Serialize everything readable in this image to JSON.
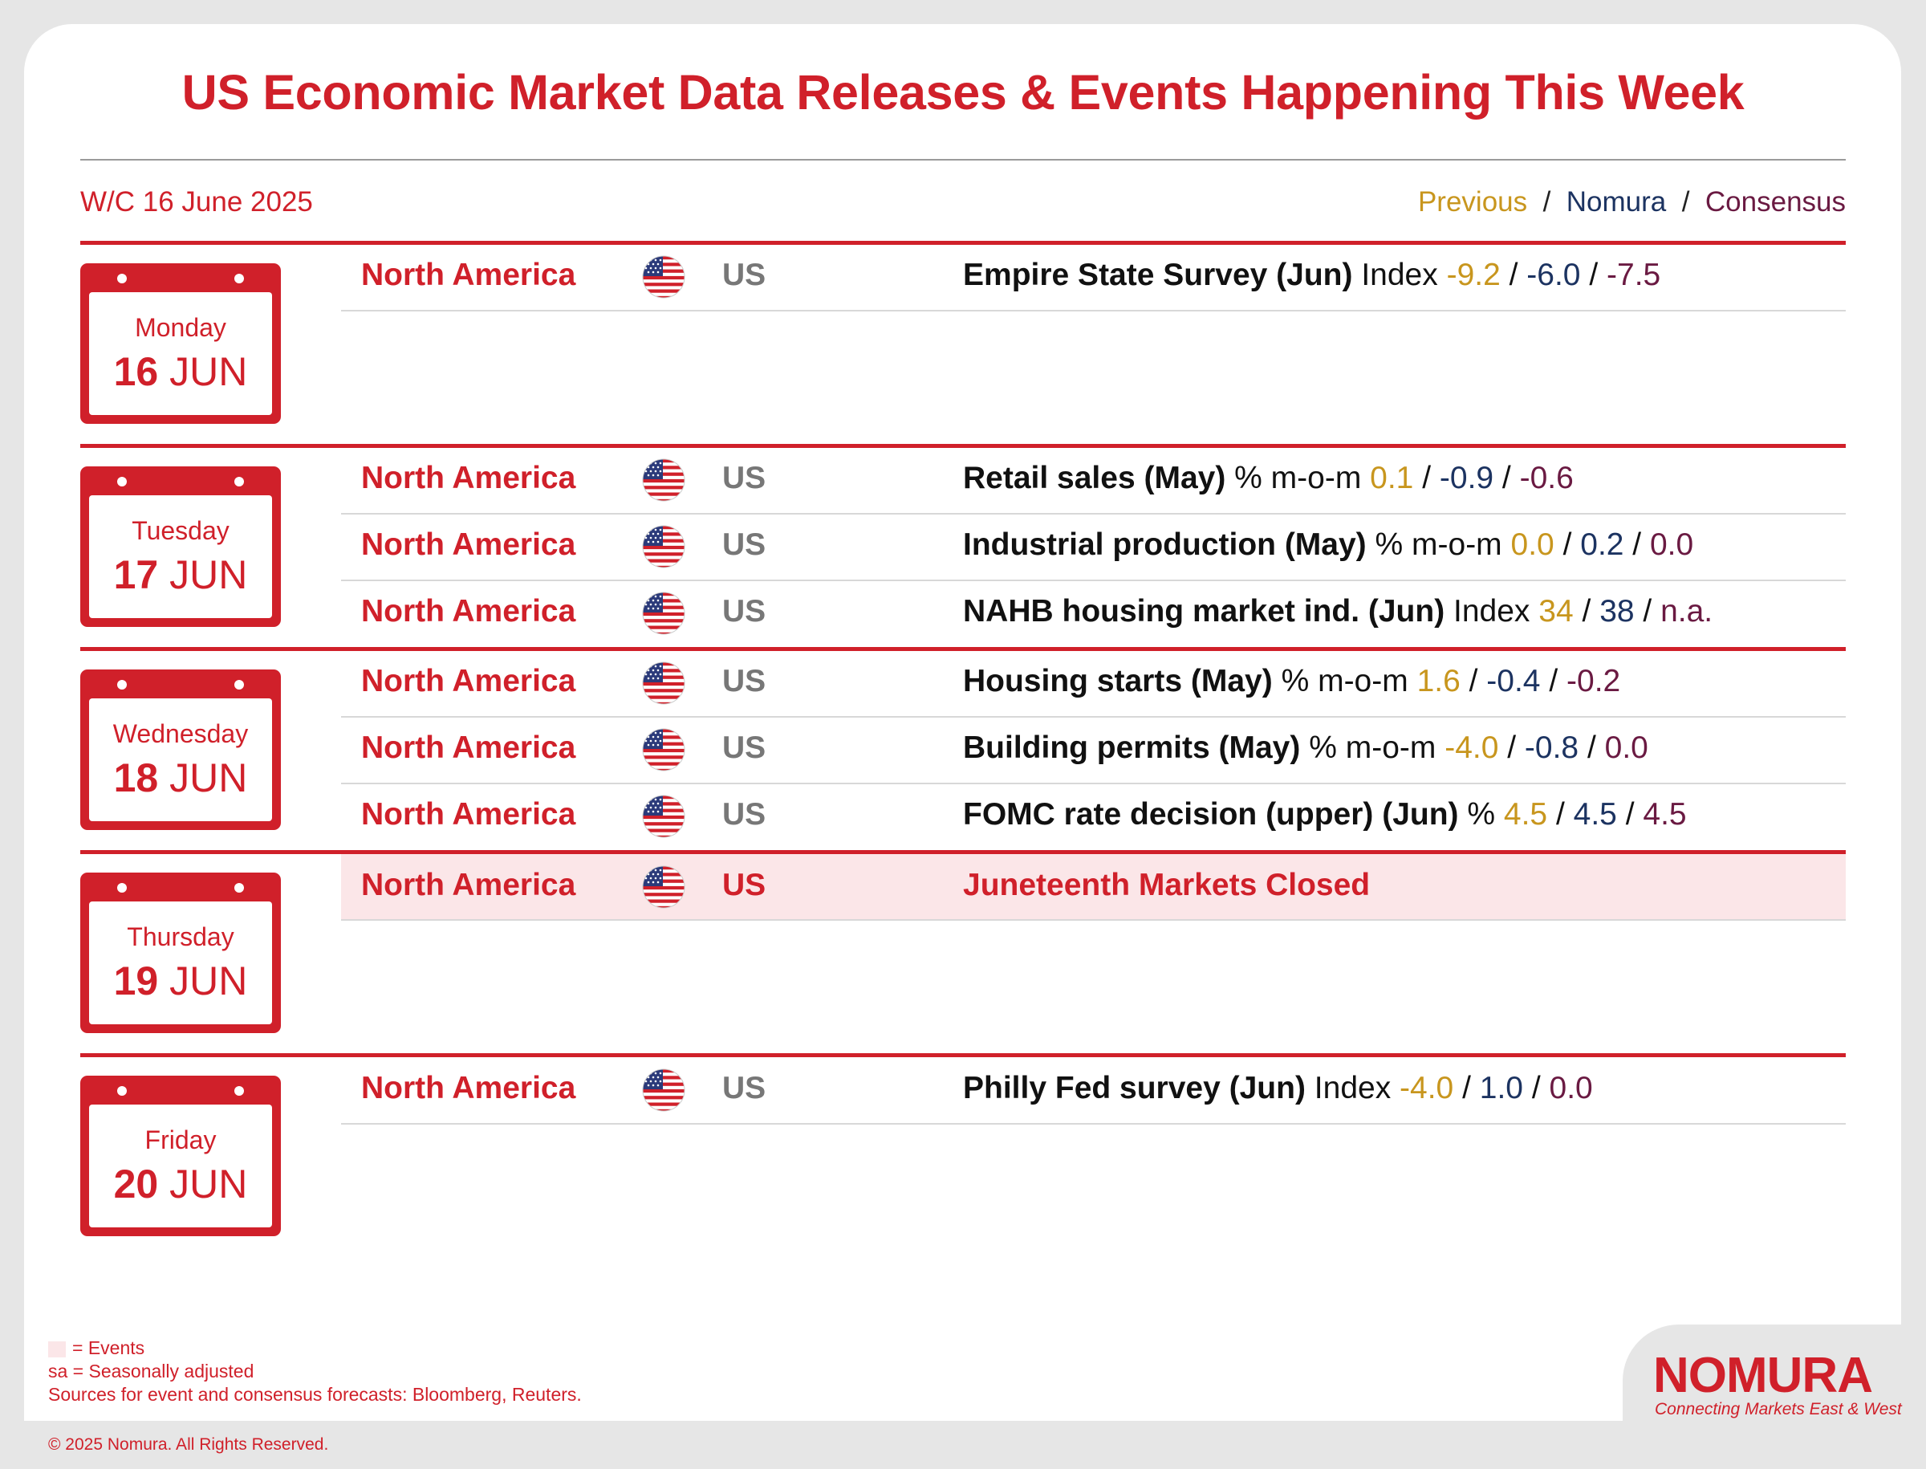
{
  "header": {
    "title": "US Economic Market Data Releases & Events Happening This Week",
    "week": "W/C 16 June 2025",
    "legend": {
      "previous": "Previous",
      "nomura": "Nomura",
      "consensus": "Consensus",
      "sep": "/"
    }
  },
  "days": [
    {
      "name": "Monday",
      "num": "16",
      "month": "JUN"
    },
    {
      "name": "Tuesday",
      "num": "17",
      "month": "JUN"
    },
    {
      "name": "Wednesday",
      "num": "18",
      "month": "JUN"
    },
    {
      "name": "Thursday",
      "num": "19",
      "month": "JUN"
    },
    {
      "name": "Friday",
      "num": "20",
      "month": "JUN"
    }
  ],
  "rows": [
    {
      "region": "North America",
      "country": "US",
      "indicator": "Empire State Survey (Jun)",
      "unit": "Index",
      "previous": "-9.2",
      "nomura": "-6.0",
      "consensus": "-7.5"
    },
    {
      "region": "North America",
      "country": "US",
      "indicator": "Retail sales (May)",
      "unit": "% m-o-m",
      "previous": "0.1",
      "nomura": "-0.9",
      "consensus": "-0.6"
    },
    {
      "region": "North America",
      "country": "US",
      "indicator": "Industrial production (May)",
      "unit": "% m-o-m",
      "previous": "0.0",
      "nomura": "0.2",
      "consensus": "0.0"
    },
    {
      "region": "North America",
      "country": "US",
      "indicator": "NAHB housing market ind. (Jun)",
      "unit": "Index",
      "previous": "34",
      "nomura": "38",
      "consensus": "n.a."
    },
    {
      "region": "North America",
      "country": "US",
      "indicator": "Housing starts (May)",
      "unit": "% m-o-m",
      "previous": "1.6",
      "nomura": "-0.4",
      "consensus": "-0.2"
    },
    {
      "region": "North America",
      "country": "US",
      "indicator": "Building permits (May)",
      "unit": "% m-o-m",
      "previous": "-4.0",
      "nomura": "-0.8",
      "consensus": "0.0"
    },
    {
      "region": "North America",
      "country": "US",
      "indicator": "FOMC rate decision (upper) (Jun)",
      "unit": "%",
      "previous": "4.5",
      "nomura": "4.5",
      "consensus": "4.5"
    },
    {
      "region": "North America",
      "country": "US",
      "event": "Juneteenth Markets Closed"
    },
    {
      "region": "North America",
      "country": "US",
      "indicator": "Philly Fed survey (Jun)",
      "unit": "Index",
      "previous": "-4.0",
      "nomura": "1.0",
      "consensus": "0.0"
    }
  ],
  "footer": {
    "events_note": "= Events",
    "sa_note": "sa = Seasonally adjusted",
    "sources": "Sources for event and consensus forecasts: Bloomberg, Reuters.",
    "copyright": "© 2025 Nomura. All Rights Reserved."
  },
  "brand": {
    "logo": "NOMURA",
    "tagline": "Connecting Markets East & West"
  },
  "colors": {
    "accent": "#d0202a",
    "previous": "#c8961e",
    "nomura": "#1c3361",
    "consensus": "#6a1a42",
    "event_bg": "#fbe6e8"
  }
}
